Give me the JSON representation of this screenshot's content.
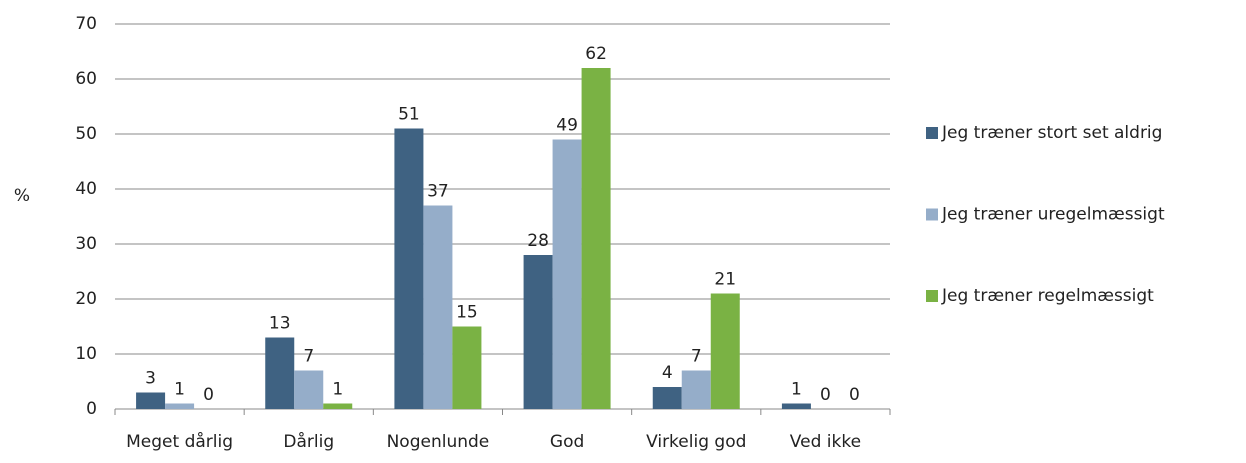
{
  "chart_data": {
    "type": "bar",
    "ylabel": "%",
    "categories": [
      "Meget dårlig",
      "Dårlig",
      "Nogenlunde",
      "God",
      "Virkelig god",
      "Ved ikke"
    ],
    "series": [
      {
        "name": "Jeg træner stort set aldrig",
        "color": "#3f6282",
        "values": [
          3,
          13,
          51,
          28,
          4,
          1
        ]
      },
      {
        "name": "Jeg træner uregelmæssigt",
        "color": "#95adc9",
        "values": [
          1,
          7,
          37,
          49,
          7,
          0
        ]
      },
      {
        "name": "Jeg træner regelmæssigt",
        "color": "#7ab244",
        "values": [
          0,
          1,
          15,
          62,
          21,
          0
        ]
      }
    ],
    "ylim": [
      0,
      70
    ],
    "yticks": [
      0,
      10,
      20,
      30,
      40,
      50,
      60,
      70
    ],
    "grid": true,
    "legend": "right"
  }
}
